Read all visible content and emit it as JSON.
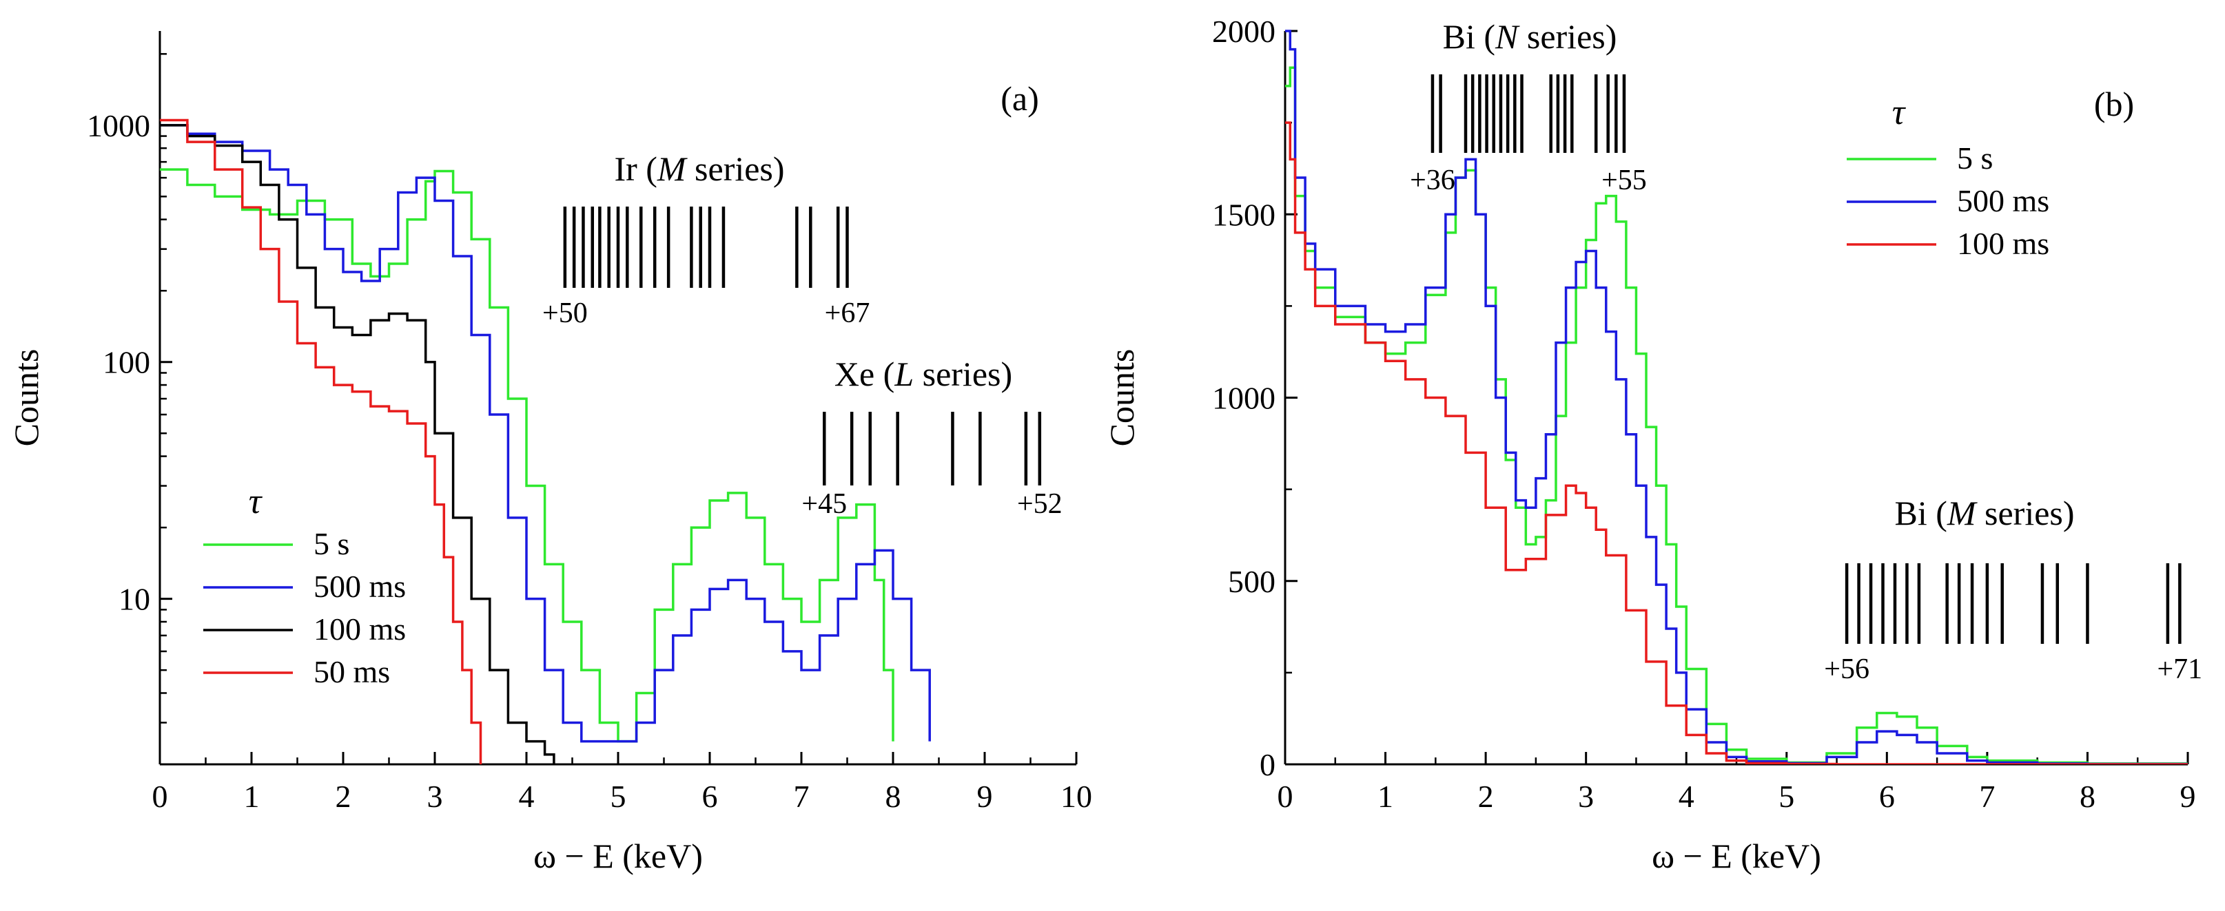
{
  "chart_data": [
    {
      "panel": "(a)",
      "type": "line",
      "ylabel": "Counts",
      "xlabel": "ω − E (keV)",
      "yscale": "log",
      "xlim": [
        0,
        10
      ],
      "ylim": [
        2,
        2500
      ],
      "xticks": [
        "0",
        "1",
        "2",
        "3",
        "4",
        "5",
        "6",
        "7",
        "8",
        "9",
        "10"
      ],
      "yticks": [
        {
          "v": 10,
          "label": "10"
        },
        {
          "v": 100,
          "label": "100"
        },
        {
          "v": 1000,
          "label": "1000"
        }
      ],
      "legend_title": "τ",
      "legend_position": "bottom-left",
      "series": [
        {
          "name": "5 s",
          "color": "#2ee82e",
          "x": [
            0,
            0.3,
            0.6,
            0.9,
            1.2,
            1.5,
            1.8,
            2.1,
            2.3,
            2.5,
            2.7,
            2.9,
            3.0,
            3.2,
            3.4,
            3.6,
            3.8,
            4.0,
            4.2,
            4.4,
            4.6,
            4.8,
            5.0,
            5.2,
            5.4,
            5.6,
            5.8,
            6.0,
            6.2,
            6.4,
            6.6,
            6.8,
            7.0,
            7.2,
            7.4,
            7.6,
            7.8,
            7.9,
            8.0
          ],
          "y": [
            650,
            560,
            500,
            440,
            420,
            480,
            400,
            260,
            230,
            260,
            400,
            580,
            640,
            520,
            330,
            170,
            70,
            30,
            14,
            8,
            5,
            3,
            2.5,
            4,
            9,
            14,
            20,
            26,
            28,
            22,
            14,
            10,
            8,
            12,
            22,
            25,
            12,
            5,
            2.5
          ]
        },
        {
          "name": "500 ms",
          "color": "#1a1adf",
          "x": [
            0,
            0.3,
            0.6,
            0.9,
            1.2,
            1.4,
            1.6,
            1.8,
            2.0,
            2.2,
            2.4,
            2.6,
            2.8,
            3.0,
            3.2,
            3.4,
            3.6,
            3.8,
            4.0,
            4.2,
            4.4,
            4.6,
            4.8,
            5.0,
            5.2,
            5.4,
            5.6,
            5.8,
            6.0,
            6.2,
            6.4,
            6.6,
            6.8,
            7.0,
            7.2,
            7.4,
            7.6,
            7.8,
            8.0,
            8.2,
            8.4
          ],
          "y": [
            1000,
            920,
            850,
            780,
            650,
            560,
            420,
            300,
            240,
            220,
            300,
            520,
            600,
            480,
            280,
            130,
            60,
            22,
            10,
            5,
            3,
            2.5,
            2.5,
            2.5,
            3,
            5,
            7,
            9,
            11,
            12,
            10,
            8,
            6,
            5,
            7,
            10,
            14,
            16,
            10,
            5,
            2.5
          ]
        },
        {
          "name": "100 ms",
          "color": "#000000",
          "x": [
            0,
            0.3,
            0.6,
            0.9,
            1.1,
            1.3,
            1.5,
            1.7,
            1.9,
            2.1,
            2.3,
            2.5,
            2.7,
            2.9,
            3.0,
            3.2,
            3.4,
            3.6,
            3.8,
            4.0,
            4.2,
            4.3
          ],
          "y": [
            1000,
            900,
            820,
            700,
            560,
            400,
            250,
            170,
            140,
            130,
            150,
            160,
            150,
            100,
            50,
            22,
            10,
            5,
            3,
            2.5,
            2.2,
            2
          ]
        },
        {
          "name": "50 ms",
          "color": "#e81c1c",
          "x": [
            0,
            0.3,
            0.6,
            0.9,
            1.1,
            1.3,
            1.5,
            1.7,
            1.9,
            2.1,
            2.3,
            2.5,
            2.7,
            2.9,
            3.0,
            3.1,
            3.2,
            3.3,
            3.4,
            3.5
          ],
          "y": [
            1050,
            850,
            650,
            450,
            300,
            180,
            120,
            95,
            80,
            75,
            65,
            62,
            55,
            40,
            25,
            15,
            8,
            5,
            3,
            2
          ]
        }
      ],
      "markers": [
        {
          "label_prefix": "Ir (",
          "label_italic": "M",
          "label_suffix": " series)",
          "first": "+50",
          "last": "+67",
          "positions": [
            4.42,
            4.52,
            4.62,
            4.72,
            4.8,
            4.9,
            5.0,
            5.1,
            5.25,
            5.4,
            5.55,
            5.8,
            5.9,
            6.0,
            6.15,
            6.95,
            7.1,
            7.4,
            7.5
          ]
        },
        {
          "label_prefix": "Xe (",
          "label_italic": "L",
          "label_suffix": " series)",
          "first": "+45",
          "last": "+52",
          "positions": [
            7.25,
            7.55,
            7.75,
            8.05,
            8.65,
            8.95,
            9.45,
            9.6
          ]
        }
      ]
    },
    {
      "panel": "(b)",
      "type": "line",
      "ylabel": "Counts",
      "xlabel": "ω − E (keV)",
      "yscale": "linear",
      "xlim": [
        0,
        9
      ],
      "ylim": [
        0,
        2000
      ],
      "xticks": [
        "0",
        "1",
        "2",
        "3",
        "4",
        "5",
        "6",
        "7",
        "8",
        "9"
      ],
      "yticks": [
        {
          "v": 0,
          "label": "0"
        },
        {
          "v": 500,
          "label": "500"
        },
        {
          "v": 1000,
          "label": "1000"
        },
        {
          "v": 1500,
          "label": "1500"
        },
        {
          "v": 2000,
          "label": "2000"
        }
      ],
      "legend_title": "τ",
      "legend_position": "top-right",
      "series": [
        {
          "name": "5 s",
          "color": "#2ee82e",
          "x": [
            0,
            0.05,
            0.1,
            0.2,
            0.3,
            0.5,
            0.8,
            1.0,
            1.2,
            1.4,
            1.6,
            1.7,
            1.8,
            1.9,
            2.0,
            2.1,
            2.2,
            2.3,
            2.4,
            2.5,
            2.6,
            2.7,
            2.8,
            2.9,
            3.0,
            3.1,
            3.2,
            3.3,
            3.4,
            3.5,
            3.6,
            3.7,
            3.8,
            3.9,
            4.0,
            4.2,
            4.4,
            4.6,
            5.0,
            5.4,
            5.7,
            5.9,
            6.1,
            6.3,
            6.5,
            6.8,
            7.0,
            7.5,
            8.0,
            9.0
          ],
          "y": [
            1850,
            1900,
            1550,
            1400,
            1300,
            1220,
            1150,
            1120,
            1150,
            1280,
            1450,
            1600,
            1620,
            1500,
            1300,
            1050,
            830,
            700,
            600,
            620,
            720,
            950,
            1150,
            1300,
            1430,
            1530,
            1550,
            1480,
            1300,
            1120,
            920,
            760,
            600,
            430,
            260,
            110,
            40,
            15,
            5,
            30,
            100,
            140,
            130,
            100,
            50,
            20,
            10,
            5,
            2,
            0
          ]
        },
        {
          "name": "500 ms",
          "color": "#1a1adf",
          "x": [
            0,
            0.05,
            0.1,
            0.2,
            0.3,
            0.5,
            0.8,
            1.0,
            1.2,
            1.4,
            1.6,
            1.7,
            1.8,
            1.9,
            2.0,
            2.1,
            2.2,
            2.3,
            2.4,
            2.5,
            2.6,
            2.7,
            2.8,
            2.9,
            3.0,
            3.1,
            3.2,
            3.3,
            3.4,
            3.5,
            3.6,
            3.7,
            3.8,
            3.9,
            4.0,
            4.2,
            4.4,
            4.6,
            5.0,
            5.4,
            5.7,
            5.9,
            6.1,
            6.3,
            6.5,
            6.8,
            7.0,
            7.5,
            8.0,
            9.0
          ],
          "y": [
            2000,
            1950,
            1600,
            1420,
            1350,
            1250,
            1200,
            1180,
            1200,
            1300,
            1500,
            1600,
            1650,
            1500,
            1250,
            1000,
            850,
            720,
            700,
            780,
            900,
            1150,
            1300,
            1370,
            1400,
            1300,
            1180,
            1050,
            900,
            760,
            620,
            490,
            370,
            250,
            150,
            60,
            20,
            8,
            3,
            20,
            60,
            90,
            80,
            60,
            30,
            10,
            5,
            2,
            1,
            0
          ]
        },
        {
          "name": "100 ms",
          "color": "#e81c1c",
          "x": [
            0,
            0.05,
            0.1,
            0.2,
            0.3,
            0.5,
            0.8,
            1.0,
            1.2,
            1.4,
            1.6,
            1.8,
            2.0,
            2.2,
            2.4,
            2.6,
            2.8,
            2.9,
            3.0,
            3.1,
            3.2,
            3.4,
            3.6,
            3.8,
            4.0,
            4.2,
            4.4,
            4.6,
            5.0,
            5.5,
            6.0,
            7.0,
            9.0
          ],
          "y": [
            1750,
            1650,
            1450,
            1350,
            1250,
            1200,
            1150,
            1100,
            1050,
            1000,
            950,
            850,
            700,
            530,
            560,
            680,
            760,
            740,
            700,
            640,
            570,
            420,
            280,
            160,
            80,
            30,
            10,
            3,
            1,
            0,
            0,
            0,
            0
          ]
        }
      ],
      "markers": [
        {
          "label_prefix": "Bi (",
          "label_italic": "N",
          "label_suffix": " series)",
          "first": "+36",
          "last": "+55",
          "positions": [
            1.47,
            1.55,
            1.8,
            1.87,
            1.94,
            2.01,
            2.08,
            2.15,
            2.22,
            2.29,
            2.36,
            2.65,
            2.72,
            2.79,
            2.86,
            3.1,
            3.22,
            3.3,
            3.38
          ]
        },
        {
          "label_prefix": "Bi (",
          "label_italic": "M",
          "label_suffix": " series)",
          "first": "+56",
          "last": "+71",
          "positions": [
            5.6,
            5.72,
            5.84,
            5.96,
            6.08,
            6.2,
            6.32,
            6.6,
            6.72,
            6.85,
            7.0,
            7.15,
            7.55,
            7.7,
            8.0,
            8.8,
            8.92
          ]
        }
      ]
    }
  ]
}
